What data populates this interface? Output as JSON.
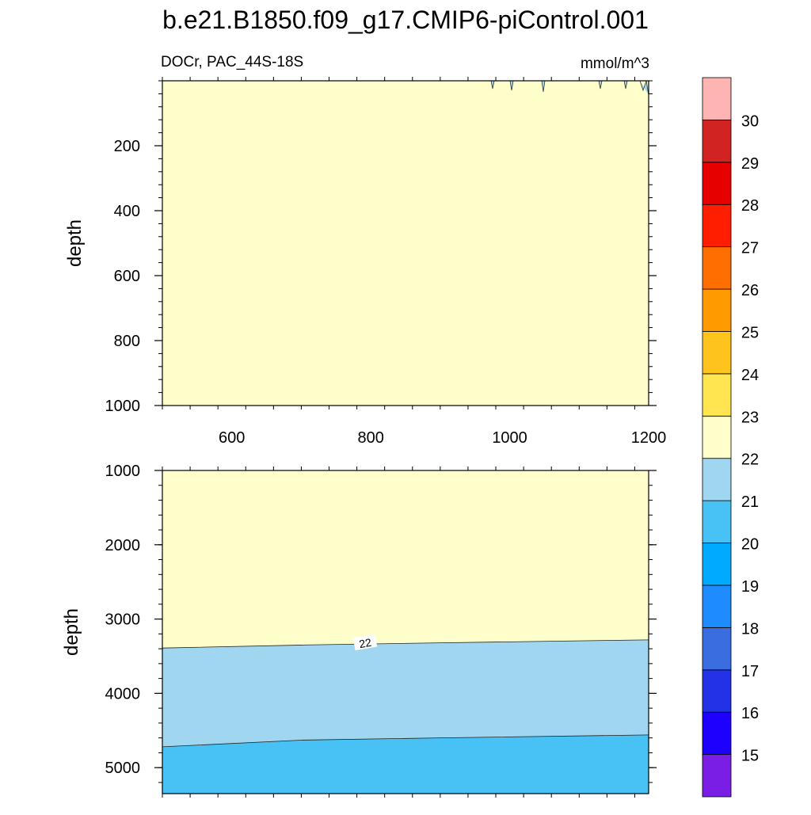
{
  "chart_data": {
    "type": "heatmap",
    "title": "b.e21.B1850.f09_g17.CMIP6-piControl.001",
    "variable": "DOCr, PAC_44S-18S",
    "units": "mmol/m^3",
    "ylabel": "depth",
    "x_range": [
      500,
      1200
    ],
    "x_ticks": [
      "600",
      "800",
      "1000",
      "1200"
    ],
    "colorbar": {
      "labels": [
        "15",
        "16",
        "17",
        "18",
        "19",
        "20",
        "21",
        "22",
        "23",
        "24",
        "25",
        "26",
        "27",
        "28",
        "29",
        "30"
      ],
      "colors": [
        "#7a1ee6",
        "#1e00ff",
        "#2232e6",
        "#3a6de0",
        "#1e8cff",
        "#00aaff",
        "#48c2f5",
        "#a0d6f0",
        "#ffffcc",
        "#ffe650",
        "#ffc31e",
        "#ff9b00",
        "#ff6e00",
        "#ff1e00",
        "#e60000",
        "#d22323",
        "#ffb4b4"
      ]
    },
    "panels": [
      {
        "name": "upper",
        "y_range": [
          1000,
          0
        ],
        "y_ticks": [
          "200",
          "400",
          "600",
          "800",
          "1000"
        ],
        "fill": "22-23",
        "series": [
          {
            "name": "22-23 band",
            "value_range": [
              22,
              23
            ]
          }
        ]
      },
      {
        "name": "lower",
        "y_range": [
          5350,
          1000
        ],
        "y_ticks": [
          "1000",
          "2000",
          "3000",
          "4000",
          "5000"
        ],
        "contour_label": "22",
        "series": [
          {
            "value_range": [
              22,
              23
            ],
            "depth_bottom_x": [
              [
                500,
                3390
              ],
              [
                700,
                3350
              ],
              [
                900,
                3320
              ],
              [
                1200,
                3280
              ]
            ]
          },
          {
            "value_range": [
              21,
              22
            ],
            "depth_bottom_x": [
              [
                500,
                4720
              ],
              [
                700,
                4630
              ],
              [
                900,
                4600
              ],
              [
                1200,
                4560
              ]
            ]
          },
          {
            "value_range": [
              20,
              21
            ],
            "depth_bottom_x": [
              [
                500,
                5350
              ],
              [
                1200,
                5350
              ]
            ]
          }
        ]
      }
    ]
  }
}
